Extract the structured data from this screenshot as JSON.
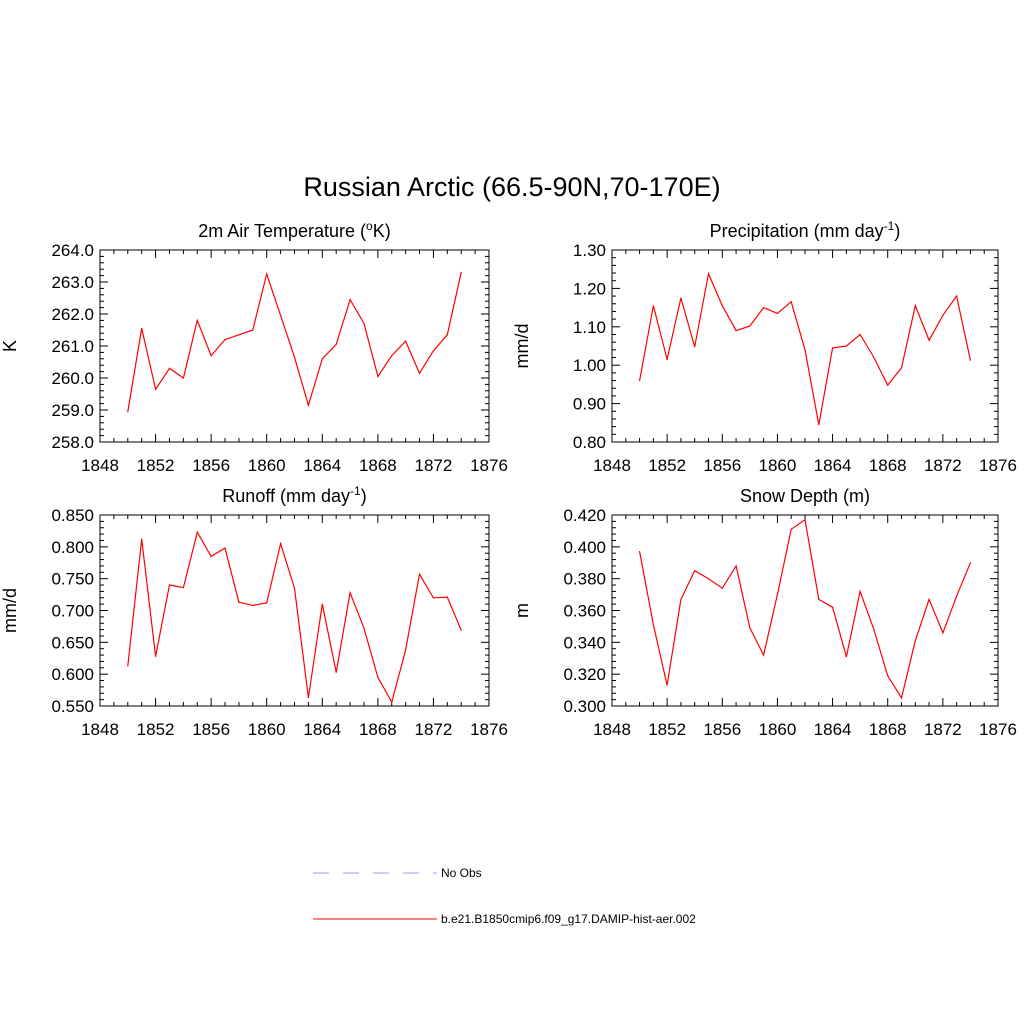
{
  "figure_title": "Russian Arctic (66.5-90N,70-170E)",
  "legend": {
    "entries": [
      {
        "label": "No Obs",
        "color": "#9999ff",
        "dashed": true
      },
      {
        "label": "b.e21.B1850cmip6.f09_g17.DAMIP-hist-aer.002",
        "color": "#ff0000",
        "dashed": false
      }
    ]
  },
  "chart_data": [
    {
      "type": "line",
      "title": "2m Air Temperature (",
      "title_sup": "o",
      "title_end": "K)",
      "ylabel": "K",
      "xlim": [
        1848,
        1876
      ],
      "ylim": [
        258.0,
        264.0
      ],
      "xticks": [
        1848,
        1852,
        1856,
        1860,
        1864,
        1868,
        1872,
        1876
      ],
      "yticks": [
        "258.0",
        "259.0",
        "260.0",
        "261.0",
        "262.0",
        "263.0",
        "264.0"
      ],
      "grid": false,
      "series": [
        {
          "color": "#ff0000",
          "x": [
            1850,
            1851,
            1852,
            1853,
            1854,
            1855,
            1856,
            1857,
            1858,
            1859,
            1860,
            1861,
            1862,
            1863,
            1864,
            1865,
            1866,
            1867,
            1868,
            1869,
            1870,
            1871,
            1872,
            1873,
            1874
          ],
          "y": [
            258.95,
            261.55,
            259.65,
            260.3,
            260.0,
            261.8,
            260.7,
            261.2,
            261.35,
            261.5,
            263.25,
            261.95,
            260.65,
            259.15,
            260.6,
            261.05,
            262.45,
            261.7,
            260.05,
            260.7,
            261.15,
            260.15,
            260.85,
            261.35,
            263.3
          ]
        }
      ]
    },
    {
      "type": "line",
      "title": "Precipitation (mm day",
      "title_sup": "-1",
      "title_end": ")",
      "ylabel": "mm/d",
      "xlim": [
        1848,
        1876
      ],
      "ylim": [
        0.8,
        1.3
      ],
      "xticks": [
        1848,
        1852,
        1856,
        1860,
        1864,
        1868,
        1872,
        1876
      ],
      "yticks": [
        "0.80",
        "0.90",
        "1.00",
        "1.10",
        "1.20",
        "1.30"
      ],
      "grid": false,
      "series": [
        {
          "color": "#ff0000",
          "x": [
            1850,
            1851,
            1852,
            1853,
            1854,
            1855,
            1856,
            1857,
            1858,
            1859,
            1860,
            1861,
            1862,
            1863,
            1864,
            1865,
            1866,
            1867,
            1868,
            1869,
            1870,
            1871,
            1872,
            1873,
            1874
          ],
          "y": [
            0.96,
            1.155,
            1.015,
            1.175,
            1.048,
            1.238,
            1.155,
            1.09,
            1.102,
            1.15,
            1.135,
            1.165,
            1.04,
            0.845,
            1.045,
            1.05,
            1.08,
            1.02,
            0.948,
            0.993,
            1.155,
            1.065,
            1.13,
            1.18,
            1.013
          ]
        }
      ]
    },
    {
      "type": "line",
      "title": "Runoff (mm day",
      "title_sup": "-1",
      "title_end": ")",
      "ylabel": "mm/d",
      "xlim": [
        1848,
        1876
      ],
      "ylim": [
        0.55,
        0.85
      ],
      "xticks": [
        1848,
        1852,
        1856,
        1860,
        1864,
        1868,
        1872,
        1876
      ],
      "yticks": [
        "0.550",
        "0.600",
        "0.650",
        "0.700",
        "0.750",
        "0.800",
        "0.850"
      ],
      "grid": false,
      "series": [
        {
          "color": "#ff0000",
          "x": [
            1850,
            1851,
            1852,
            1853,
            1854,
            1855,
            1856,
            1857,
            1858,
            1859,
            1860,
            1861,
            1862,
            1863,
            1864,
            1865,
            1866,
            1867,
            1868,
            1869,
            1870,
            1871,
            1872,
            1873,
            1874
          ],
          "y": [
            0.613,
            0.812,
            0.628,
            0.74,
            0.736,
            0.823,
            0.785,
            0.798,
            0.713,
            0.708,
            0.712,
            0.805,
            0.735,
            0.563,
            0.71,
            0.603,
            0.728,
            0.672,
            0.595,
            0.556,
            0.638,
            0.757,
            0.72,
            0.721,
            0.669
          ]
        }
      ]
    },
    {
      "type": "line",
      "title": "Snow Depth (m)",
      "title_sup": "",
      "title_end": "",
      "ylabel": "m",
      "xlim": [
        1848,
        1876
      ],
      "ylim": [
        0.3,
        0.42
      ],
      "xticks": [
        1848,
        1852,
        1856,
        1860,
        1864,
        1868,
        1872,
        1876
      ],
      "yticks": [
        "0.300",
        "0.320",
        "0.340",
        "0.360",
        "0.380",
        "0.400",
        "0.420"
      ],
      "grid": false,
      "series": [
        {
          "color": "#ff0000",
          "x": [
            1850,
            1851,
            1852,
            1853,
            1854,
            1855,
            1856,
            1857,
            1858,
            1859,
            1860,
            1861,
            1862,
            1863,
            1864,
            1865,
            1866,
            1867,
            1868,
            1869,
            1870,
            1871,
            1872,
            1873,
            1874
          ],
          "y": [
            0.397,
            0.351,
            0.313,
            0.367,
            0.385,
            0.38,
            0.374,
            0.388,
            0.349,
            0.332,
            0.37,
            0.411,
            0.417,
            0.367,
            0.362,
            0.331,
            0.372,
            0.348,
            0.319,
            0.305,
            0.341,
            0.367,
            0.346,
            0.369,
            0.39
          ]
        }
      ]
    }
  ]
}
